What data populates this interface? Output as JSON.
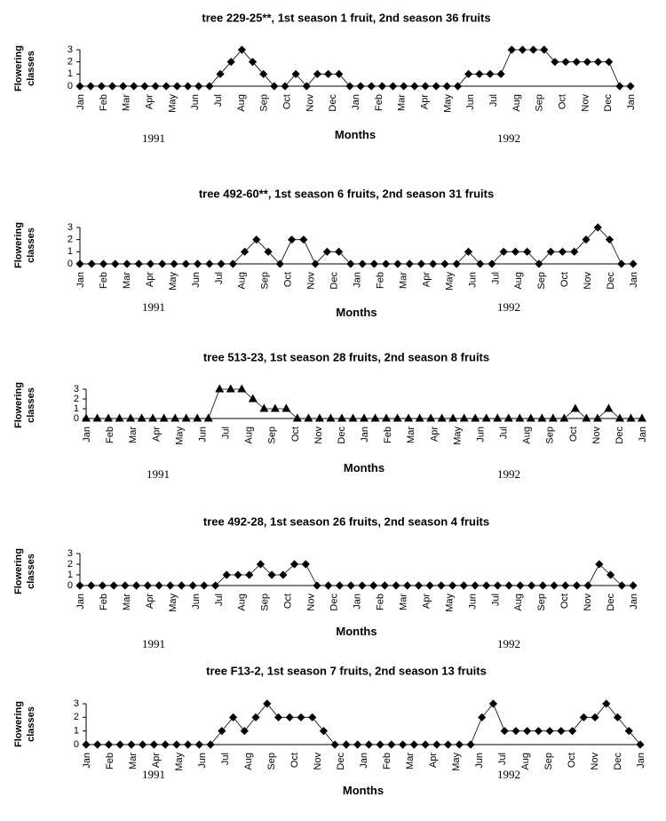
{
  "figure": {
    "ylabel_line1": "Flowering",
    "ylabel_line2": "classes",
    "yticks": [
      "0",
      "1",
      "2",
      "3"
    ]
  },
  "chart_data": [
    {
      "type": "line",
      "title": "tree 229-25**, 1st season 1 fruit, 2nd season 36 fruits",
      "marker": "diamond",
      "xlabel": "Months",
      "ylabel": "Flowering classes",
      "ylim": [
        0,
        3
      ],
      "x_tick_labels": [
        "Jan",
        "Feb",
        "Mar",
        "Apr",
        "May",
        "Jun",
        "Jul",
        "Aug",
        "Sep",
        "Oct",
        "Nov",
        "Dec",
        "Jan",
        "Feb",
        "Mar",
        "Apr",
        "May",
        "Jun",
        "Jul",
        "Aug",
        "Sep",
        "Oct",
        "Nov",
        "Dec",
        "Jan"
      ],
      "year_labels": [
        "1991",
        "1992"
      ],
      "values": [
        0,
        0,
        0,
        0,
        0,
        0,
        0,
        0,
        0,
        0,
        0,
        0,
        0,
        1,
        2,
        3,
        2,
        1,
        0,
        0,
        1,
        0,
        1,
        1,
        1,
        0,
        0,
        0,
        0,
        0,
        0,
        0,
        0,
        0,
        0,
        0,
        1,
        1,
        1,
        1,
        3,
        3,
        3,
        3,
        2,
        2,
        2,
        2,
        2,
        2,
        0,
        0
      ]
    },
    {
      "type": "line",
      "title": "tree 492-60**, 1st season 6 fruits, 2nd season 31 fruits",
      "marker": "diamond",
      "xlabel": "Months",
      "ylabel": "Flowering classes",
      "ylim": [
        0,
        3
      ],
      "x_tick_labels": [
        "Jan",
        "Feb",
        "Mar",
        "Apr",
        "May",
        "Jun",
        "Jul",
        "Aug",
        "Sep",
        "Oct",
        "Nov",
        "Dec",
        "Jan",
        "Feb",
        "Mar",
        "Apr",
        "May",
        "Jun",
        "Jul",
        "Aug",
        "Sep",
        "Oct",
        "Nov",
        "Dec",
        "Jan"
      ],
      "year_labels": [
        "1991",
        "1992"
      ],
      "values": [
        0,
        0,
        0,
        0,
        0,
        0,
        0,
        0,
        0,
        0,
        0,
        0,
        0,
        0,
        1,
        2,
        1,
        0,
        2,
        2,
        0,
        1,
        1,
        0,
        0,
        0,
        0,
        0,
        0,
        0,
        0,
        0,
        0,
        1,
        0,
        0,
        1,
        1,
        1,
        0,
        1,
        1,
        1,
        2,
        3,
        2,
        0,
        0
      ]
    },
    {
      "type": "line",
      "title": "tree 513-23, 1st season 28 fruits, 2nd season 8 fruits",
      "marker": "triangle",
      "xlabel": "Months",
      "ylabel": "Flowering classes",
      "ylim": [
        0,
        3
      ],
      "x_tick_labels": [
        "Jan",
        "Feb",
        "Mar",
        "Apr",
        "May",
        "Jun",
        "Jul",
        "Aug",
        "Sep",
        "Oct",
        "Nov",
        "Dec",
        "Jan",
        "Feb",
        "Mar",
        "Apr",
        "May",
        "Jun",
        "Jul",
        "Aug",
        "Sep",
        "Oct",
        "Nov",
        "Dec",
        "Jan"
      ],
      "year_labels": [
        "1991",
        "1992"
      ],
      "values": [
        0,
        0,
        0,
        0,
        0,
        0,
        0,
        0,
        0,
        0,
        0,
        0,
        3,
        3,
        3,
        2,
        1,
        1,
        1,
        0,
        0,
        0,
        0,
        0,
        0,
        0,
        0,
        0,
        0,
        0,
        0,
        0,
        0,
        0,
        0,
        0,
        0,
        0,
        0,
        0,
        0,
        0,
        0,
        0,
        1,
        0,
        0,
        1,
        0,
        0,
        0
      ]
    },
    {
      "type": "line",
      "title": "tree 492-28, 1st season 26 fruits, 2nd season 4 fruits",
      "marker": "diamond",
      "xlabel": "Months",
      "ylabel": "Flowering classes",
      "ylim": [
        0,
        3
      ],
      "x_tick_labels": [
        "Jan",
        "Feb",
        "Mar",
        "Apr",
        "May",
        "Jun",
        "Jul",
        "Aug",
        "Sep",
        "Oct",
        "Nov",
        "Dec",
        "Jan",
        "Feb",
        "Mar",
        "Apr",
        "May",
        "Jun",
        "Jul",
        "Aug",
        "Sep",
        "Oct",
        "Nov",
        "Dec",
        "Jan"
      ],
      "year_labels": [
        "1991",
        "1992"
      ],
      "values": [
        0,
        0,
        0,
        0,
        0,
        0,
        0,
        0,
        0,
        0,
        0,
        0,
        0,
        1,
        1,
        1,
        2,
        1,
        1,
        2,
        2,
        0,
        0,
        0,
        0,
        0,
        0,
        0,
        0,
        0,
        0,
        0,
        0,
        0,
        0,
        0,
        0,
        0,
        0,
        0,
        0,
        0,
        0,
        0,
        0,
        0,
        2,
        1,
        0,
        0
      ]
    },
    {
      "type": "line",
      "title": "tree F13-2, 1st season 7 fruits, 2nd season 13 fruits",
      "marker": "diamond",
      "xlabel": "Months",
      "ylabel": "Flowering classes",
      "ylim": [
        0,
        3
      ],
      "x_tick_labels": [
        "Jan",
        "Feb",
        "Mar",
        "Apr",
        "May",
        "Jun",
        "Jul",
        "Aug",
        "Sep",
        "Oct",
        "Nov",
        "Dec",
        "Jan",
        "Feb",
        "Mar",
        "Apr",
        "May",
        "Jun",
        "Jul",
        "Aug",
        "Sep",
        "Oct",
        "Nov",
        "Dec",
        "Jan"
      ],
      "year_labels": [
        "1991",
        "1992"
      ],
      "values": [
        0,
        0,
        0,
        0,
        0,
        0,
        0,
        0,
        0,
        0,
        0,
        0,
        1,
        2,
        1,
        2,
        3,
        2,
        2,
        2,
        2,
        1,
        0,
        0,
        0,
        0,
        0,
        0,
        0,
        0,
        0,
        0,
        0,
        0,
        0,
        2,
        3,
        1,
        1,
        1,
        1,
        1,
        1,
        1,
        2,
        2,
        3,
        2,
        1,
        0
      ]
    }
  ]
}
